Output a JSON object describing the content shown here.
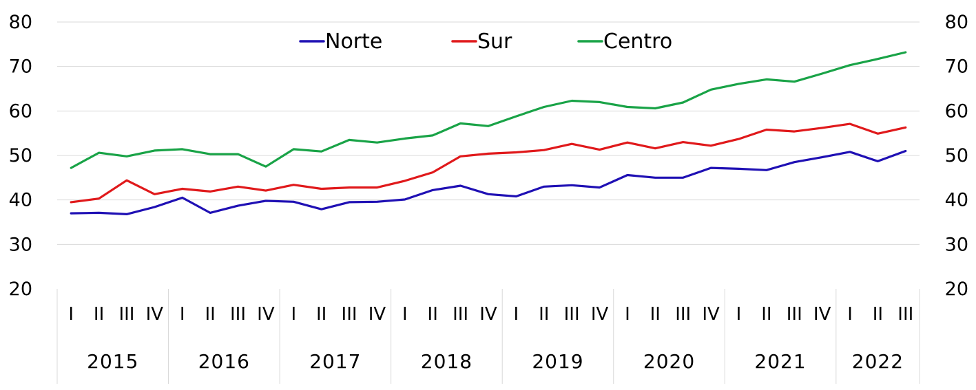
{
  "chart_data": {
    "type": "line",
    "ylim": [
      20,
      80
    ],
    "yticks": [
      20,
      30,
      40,
      50,
      60,
      70,
      80
    ],
    "y_axes": "left-and-right",
    "legend_position": "top",
    "grid": true,
    "years": [
      {
        "label": "2015",
        "quarters": [
          "I",
          "II",
          "III",
          "IV"
        ]
      },
      {
        "label": "2016",
        "quarters": [
          "I",
          "II",
          "III",
          "IV"
        ]
      },
      {
        "label": "2017",
        "quarters": [
          "I",
          "II",
          "III",
          "IV"
        ]
      },
      {
        "label": "2018",
        "quarters": [
          "I",
          "II",
          "III",
          "IV"
        ]
      },
      {
        "label": "2019",
        "quarters": [
          "I",
          "II",
          "III",
          "IV"
        ]
      },
      {
        "label": "2020",
        "quarters": [
          "I",
          "II",
          "III",
          "IV"
        ]
      },
      {
        "label": "2021",
        "quarters": [
          "I",
          "II",
          "III",
          "IV"
        ]
      },
      {
        "label": "2022",
        "quarters": [
          "I",
          "II",
          "III"
        ]
      }
    ],
    "series": [
      {
        "name": "Norte",
        "color": "#1f10b4",
        "values": [
          37.0,
          37.1,
          36.8,
          38.4,
          40.5,
          37.1,
          38.7,
          39.8,
          39.6,
          37.9,
          39.5,
          39.6,
          40.1,
          42.2,
          43.2,
          41.3,
          40.8,
          43.0,
          43.3,
          42.8,
          45.6,
          45.0,
          45.0,
          47.2,
          47.0,
          46.7,
          48.5,
          49.6,
          50.8,
          48.7,
          51.0
        ]
      },
      {
        "name": "Sur",
        "color": "#e0191b",
        "values": [
          39.5,
          40.3,
          44.4,
          41.3,
          42.5,
          41.9,
          43.0,
          42.1,
          43.4,
          42.5,
          42.8,
          42.8,
          44.3,
          46.2,
          49.8,
          50.4,
          50.7,
          51.2,
          52.6,
          51.3,
          52.9,
          51.6,
          53.0,
          52.2,
          53.7,
          55.8,
          55.4,
          56.2,
          57.1,
          54.9,
          56.3
        ]
      },
      {
        "name": "Centro",
        "color": "#19a347",
        "values": [
          47.2,
          50.6,
          49.8,
          51.1,
          51.4,
          50.3,
          50.3,
          47.5,
          51.4,
          50.9,
          53.5,
          52.9,
          53.8,
          54.5,
          57.2,
          56.6,
          58.8,
          60.9,
          62.3,
          62.0,
          60.9,
          60.6,
          61.9,
          64.8,
          66.1,
          67.1,
          66.6,
          68.4,
          70.3,
          71.7,
          73.2
        ]
      }
    ]
  }
}
